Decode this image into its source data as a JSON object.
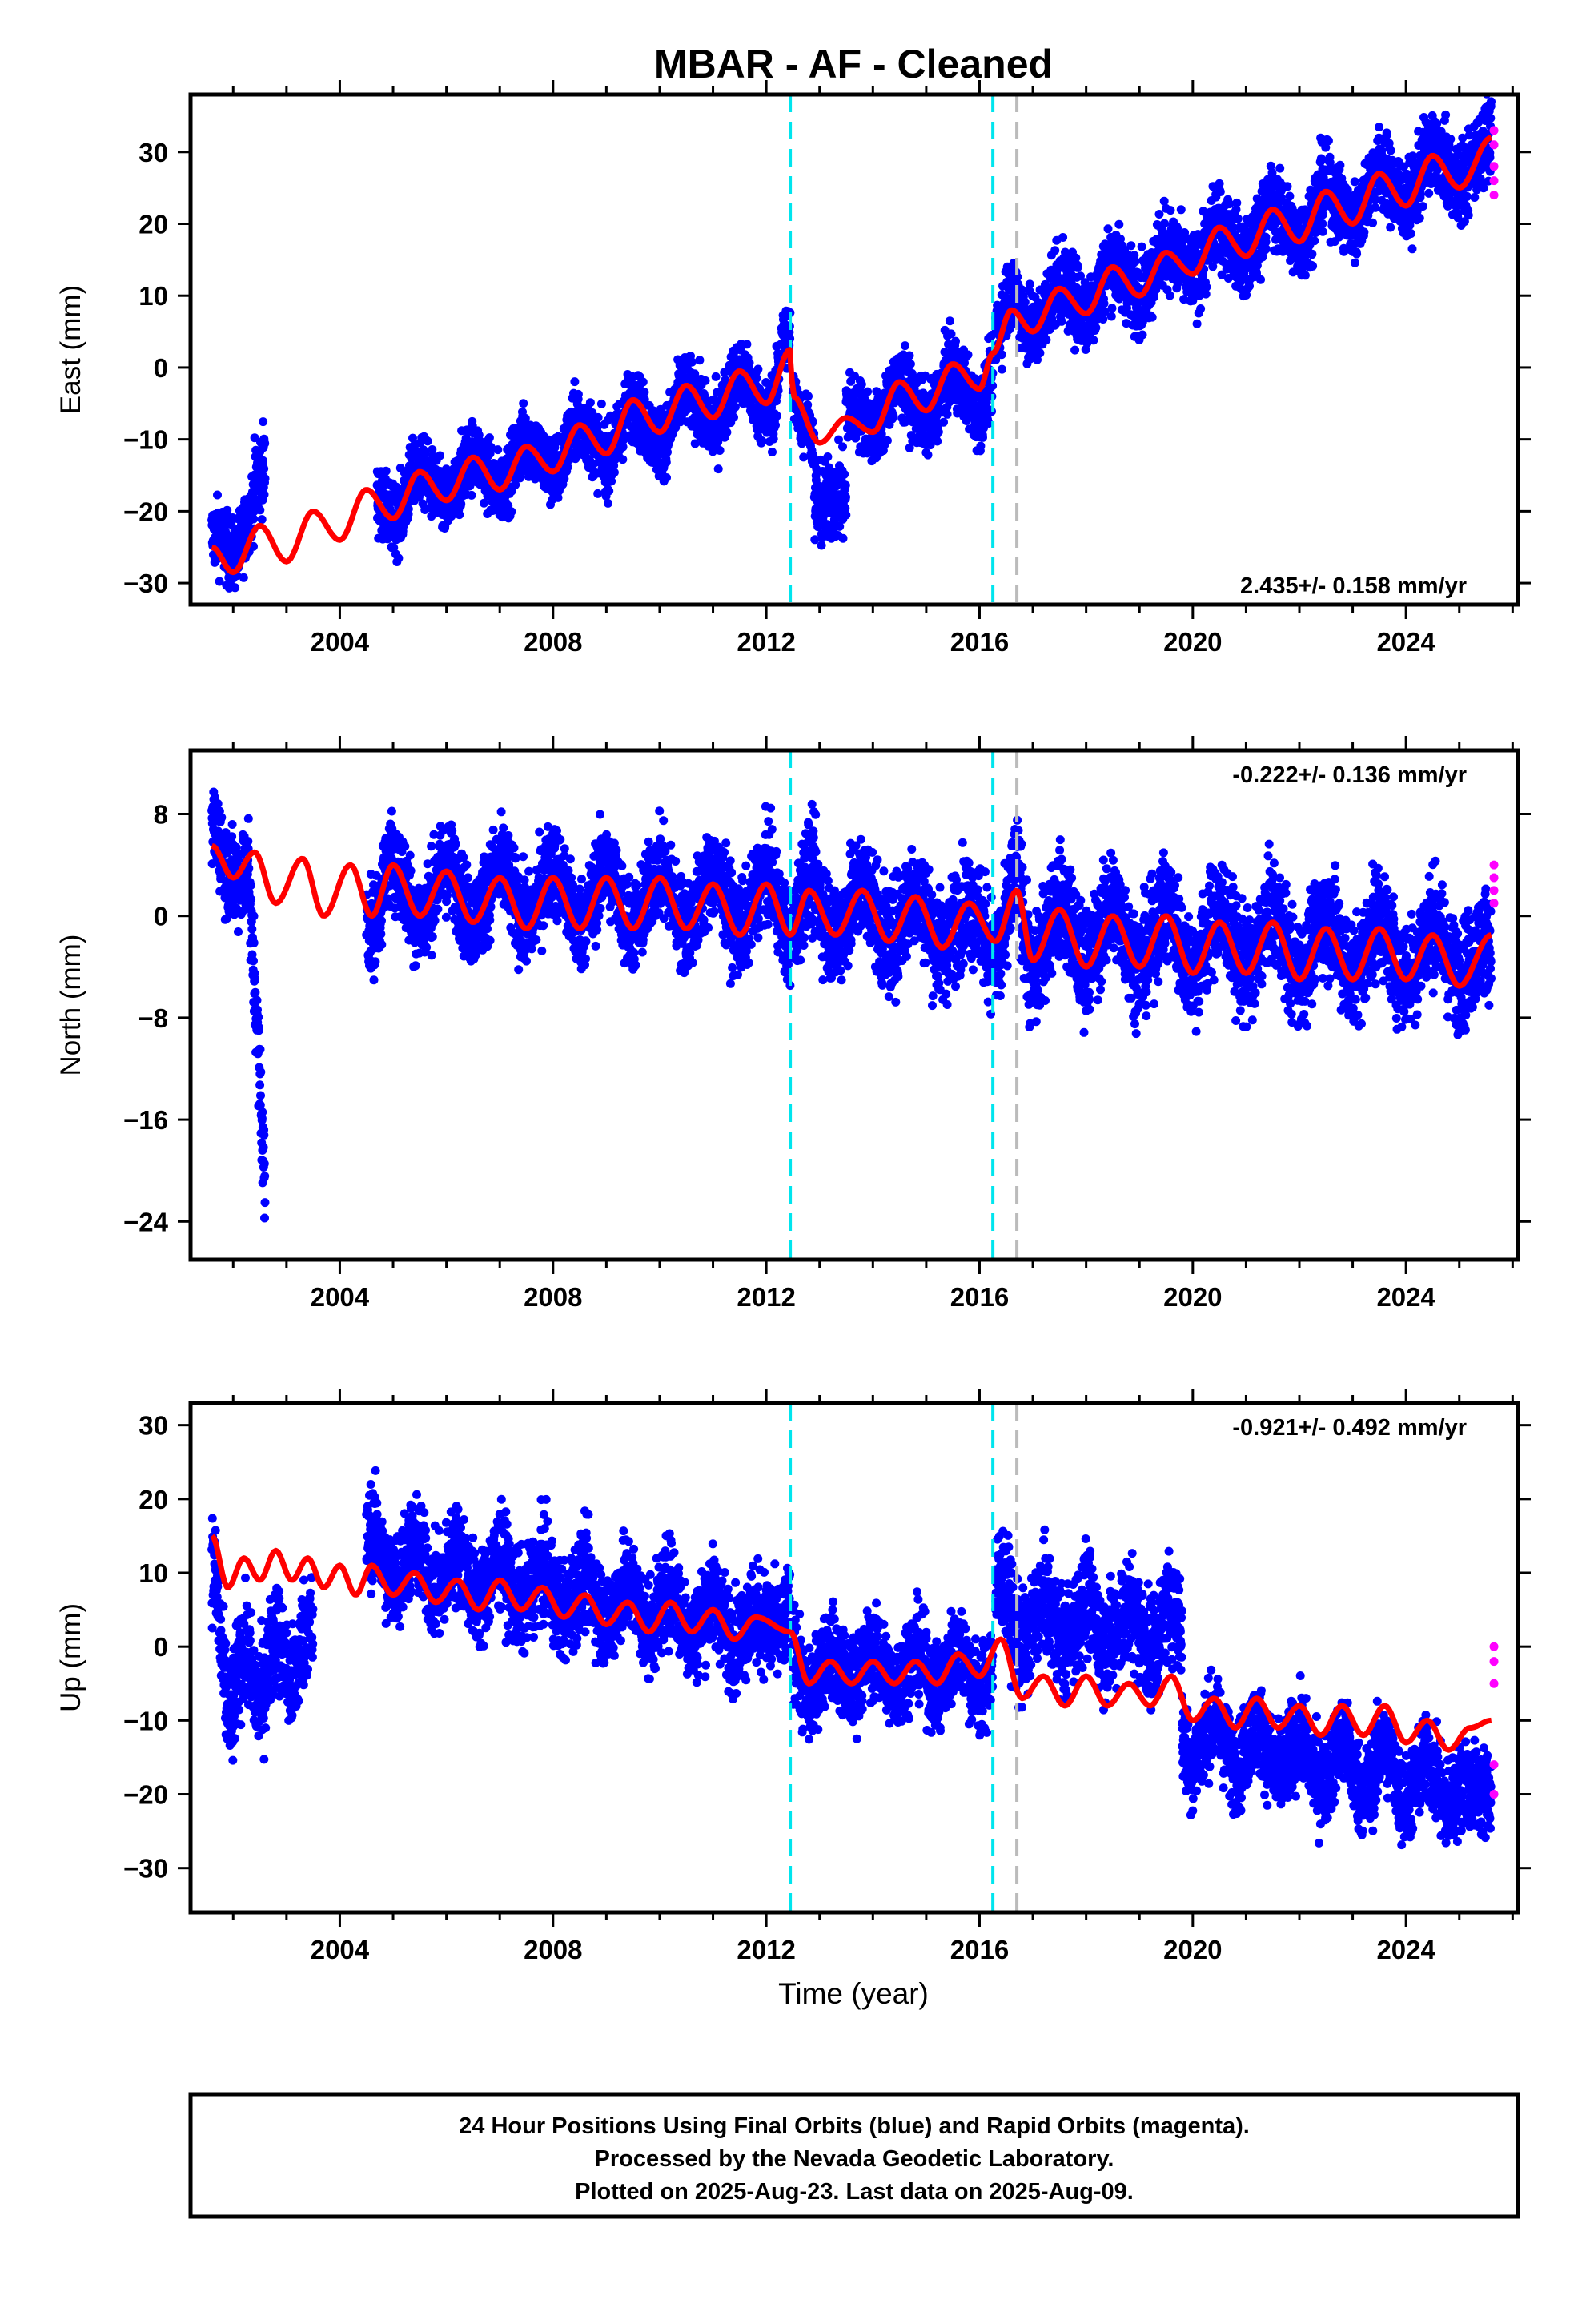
{
  "chart_data": {
    "type": "scatter",
    "title": "MBAR  - AF - Cleaned",
    "xlabel": "Time (year)",
    "xlim": [
      2001.2,
      2026.1
    ],
    "xticks": [
      2004,
      2008,
      2012,
      2016,
      2020,
      2024
    ],
    "vlines": [
      {
        "x": 2012.45,
        "color": "#00e5ee",
        "style": "dashed"
      },
      {
        "x": 2016.25,
        "color": "#00e5ee",
        "style": "dashed"
      },
      {
        "x": 2016.7,
        "color": "#bbbbbb",
        "style": "dashed"
      }
    ],
    "colors": {
      "final": "#0000ff",
      "rapid": "#ff00ff",
      "model": "#ff0000"
    },
    "panels": [
      {
        "ylabel": "East (mm)",
        "ylim": [
          -33,
          38
        ],
        "yticks": [
          -30,
          -20,
          -10,
          0,
          10,
          20,
          30
        ],
        "rate": "2.435+/- 0.158 mm/yr",
        "rate_position": "bottom-right",
        "model": [
          [
            2001.6,
            -25
          ],
          [
            2002.0,
            -28.5
          ],
          [
            2002.5,
            -22
          ],
          [
            2003.0,
            -27
          ],
          [
            2003.5,
            -20
          ],
          [
            2004.0,
            -24
          ],
          [
            2004.5,
            -17
          ],
          [
            2005.0,
            -21
          ],
          [
            2005.5,
            -14.5
          ],
          [
            2006.0,
            -18.5
          ],
          [
            2006.5,
            -12.5
          ],
          [
            2007.0,
            -17
          ],
          [
            2007.5,
            -11
          ],
          [
            2008.0,
            -14.5
          ],
          [
            2008.5,
            -8
          ],
          [
            2009.0,
            -12
          ],
          [
            2009.5,
            -4.5
          ],
          [
            2010.0,
            -9
          ],
          [
            2010.5,
            -2.5
          ],
          [
            2011.0,
            -7
          ],
          [
            2011.5,
            -0.5
          ],
          [
            2012.0,
            -5
          ],
          [
            2012.45,
            2.5
          ],
          [
            2012.5,
            -4
          ],
          [
            2013.0,
            -10.5
          ],
          [
            2013.5,
            -7
          ],
          [
            2014.0,
            -9
          ],
          [
            2014.5,
            -2
          ],
          [
            2015.0,
            -6
          ],
          [
            2015.5,
            0.5
          ],
          [
            2016.0,
            -3
          ],
          [
            2016.25,
            2
          ],
          [
            2016.6,
            8
          ],
          [
            2017.0,
            5
          ],
          [
            2017.5,
            11
          ],
          [
            2018.0,
            7.5
          ],
          [
            2018.5,
            14
          ],
          [
            2019.0,
            10
          ],
          [
            2019.5,
            16
          ],
          [
            2020.0,
            13
          ],
          [
            2020.5,
            19.5
          ],
          [
            2021.0,
            15.5
          ],
          [
            2021.5,
            22
          ],
          [
            2022.0,
            17.5
          ],
          [
            2022.5,
            24.5
          ],
          [
            2023.0,
            20
          ],
          [
            2023.5,
            27
          ],
          [
            2024.0,
            22.5
          ],
          [
            2024.5,
            29.5
          ],
          [
            2025.0,
            25
          ],
          [
            2025.6,
            32
          ]
        ],
        "final_segments": [
          {
            "x0": 2001.6,
            "x1": 2002.4,
            "y0": -25,
            "y1": -21,
            "noise": 4
          },
          {
            "x0": 2002.4,
            "x1": 2002.6,
            "y0": -20,
            "y1": -16,
            "noise": 5
          },
          {
            "x0": 2004.7,
            "x1": 2012.45,
            "y0": -19,
            "y1": -2,
            "noise": 4
          },
          {
            "x0": 2012.5,
            "x1": 2012.9,
            "y0": -4,
            "y1": -8,
            "noise": 3
          },
          {
            "x0": 2012.9,
            "x1": 2013.5,
            "y0": -16,
            "y1": -20,
            "noise": 5
          },
          {
            "x0": 2013.5,
            "x1": 2016.25,
            "y0": -7,
            "y1": -2,
            "noise": 4
          },
          {
            "x0": 2016.3,
            "x1": 2025.6,
            "y0": 6,
            "y1": 30,
            "noise": 4.5
          }
        ],
        "rapid": [
          [
            2025.65,
            33
          ],
          [
            2025.65,
            31
          ],
          [
            2025.65,
            28
          ],
          [
            2025.65,
            26
          ],
          [
            2025.65,
            24
          ]
        ]
      },
      {
        "ylabel": "North (mm)",
        "ylim": [
          -27,
          13
        ],
        "yticks": [
          -24,
          -16,
          -8,
          0,
          8
        ],
        "rate": "-0.222+/- 0.136 mm/yr",
        "rate_position": "top-right",
        "model": [
          [
            2001.6,
            5.5
          ],
          [
            2002.0,
            3
          ],
          [
            2002.4,
            5
          ],
          [
            2002.8,
            1
          ],
          [
            2003.3,
            4.5
          ],
          [
            2003.7,
            0
          ],
          [
            2004.2,
            4
          ],
          [
            2004.6,
            0
          ],
          [
            2005.0,
            4
          ],
          [
            2005.5,
            0
          ],
          [
            2006.0,
            3.5
          ],
          [
            2006.5,
            -0.5
          ],
          [
            2007.0,
            3
          ],
          [
            2007.5,
            -1
          ],
          [
            2008.0,
            3
          ],
          [
            2008.5,
            -1
          ],
          [
            2009.0,
            3
          ],
          [
            2009.5,
            -1
          ],
          [
            2010.0,
            3
          ],
          [
            2010.5,
            -1
          ],
          [
            2011.0,
            2.5
          ],
          [
            2011.5,
            -1.5
          ],
          [
            2012.0,
            2.5
          ],
          [
            2012.45,
            -1.5
          ],
          [
            2012.8,
            2
          ],
          [
            2013.3,
            -1.5
          ],
          [
            2013.8,
            2
          ],
          [
            2014.3,
            -2
          ],
          [
            2014.8,
            1.5
          ],
          [
            2015.3,
            -2.5
          ],
          [
            2015.8,
            1
          ],
          [
            2016.3,
            -2
          ],
          [
            2016.7,
            2
          ],
          [
            2017.0,
            -3.5
          ],
          [
            2017.5,
            0.5
          ],
          [
            2018.0,
            -4
          ],
          [
            2018.5,
            0
          ],
          [
            2019.0,
            -4
          ],
          [
            2019.5,
            0
          ],
          [
            2020.0,
            -4.5
          ],
          [
            2020.5,
            -0.5
          ],
          [
            2021.0,
            -4.5
          ],
          [
            2021.5,
            -0.5
          ],
          [
            2022.0,
            -5
          ],
          [
            2022.5,
            -1
          ],
          [
            2023.0,
            -5
          ],
          [
            2023.5,
            -1
          ],
          [
            2024.0,
            -5
          ],
          [
            2024.5,
            -1.5
          ],
          [
            2025.0,
            -5.5
          ],
          [
            2025.6,
            -1.5
          ]
        ],
        "final_segments": [
          {
            "x0": 2001.6,
            "x1": 2002.3,
            "y0": 6,
            "y1": 3,
            "noise": 3
          },
          {
            "x0": 2002.3,
            "x1": 2002.6,
            "y0": 0,
            "y1": -22,
            "noise": 3
          },
          {
            "x0": 2004.5,
            "x1": 2012.45,
            "y0": 2,
            "y1": 1,
            "noise": 3
          },
          {
            "x0": 2012.5,
            "x1": 2016.25,
            "y0": 1,
            "y1": -1,
            "noise": 3.5
          },
          {
            "x0": 2016.3,
            "x1": 2025.6,
            "y0": -1,
            "y1": -3,
            "noise": 3.5
          }
        ],
        "rapid": [
          [
            2025.65,
            4
          ],
          [
            2025.65,
            3
          ],
          [
            2025.65,
            2
          ],
          [
            2025.65,
            1
          ]
        ]
      },
      {
        "ylabel": "Up (mm)",
        "ylim": [
          -36,
          33
        ],
        "yticks": [
          -30,
          -20,
          -10,
          0,
          10,
          20,
          30
        ],
        "rate": "-0.921+/- 0.492 mm/yr",
        "rate_position": "top-right",
        "model": [
          [
            2001.6,
            15
          ],
          [
            2001.9,
            8
          ],
          [
            2002.2,
            12
          ],
          [
            2002.5,
            9
          ],
          [
            2002.8,
            13
          ],
          [
            2003.1,
            9
          ],
          [
            2003.4,
            12
          ],
          [
            2003.7,
            8
          ],
          [
            2004.0,
            11
          ],
          [
            2004.3,
            7
          ],
          [
            2004.6,
            11
          ],
          [
            2005.0,
            7
          ],
          [
            2005.4,
            10
          ],
          [
            2005.8,
            6
          ],
          [
            2006.2,
            9
          ],
          [
            2006.6,
            5
          ],
          [
            2007.0,
            9
          ],
          [
            2007.4,
            5
          ],
          [
            2007.8,
            8
          ],
          [
            2008.2,
            4
          ],
          [
            2008.6,
            7
          ],
          [
            2009.0,
            3
          ],
          [
            2009.4,
            6
          ],
          [
            2009.8,
            2
          ],
          [
            2010.2,
            6
          ],
          [
            2010.6,
            2
          ],
          [
            2011.0,
            5
          ],
          [
            2011.4,
            1
          ],
          [
            2011.8,
            4
          ],
          [
            2012.45,
            2
          ],
          [
            2012.8,
            -5
          ],
          [
            2013.2,
            -2
          ],
          [
            2013.6,
            -5
          ],
          [
            2014.0,
            -2
          ],
          [
            2014.4,
            -5
          ],
          [
            2014.8,
            -2
          ],
          [
            2015.2,
            -5
          ],
          [
            2015.6,
            -1
          ],
          [
            2016.0,
            -4
          ],
          [
            2016.4,
            1
          ],
          [
            2016.8,
            -7
          ],
          [
            2017.2,
            -4
          ],
          [
            2017.6,
            -8
          ],
          [
            2018.0,
            -4
          ],
          [
            2018.4,
            -8
          ],
          [
            2018.8,
            -5
          ],
          [
            2019.2,
            -8
          ],
          [
            2019.6,
            -4
          ],
          [
            2020.0,
            -10
          ],
          [
            2020.4,
            -7
          ],
          [
            2020.8,
            -11
          ],
          [
            2021.2,
            -7
          ],
          [
            2021.6,
            -11
          ],
          [
            2022.0,
            -8
          ],
          [
            2022.4,
            -12
          ],
          [
            2022.8,
            -8
          ],
          [
            2023.2,
            -12
          ],
          [
            2023.6,
            -8
          ],
          [
            2024.0,
            -13
          ],
          [
            2024.4,
            -10
          ],
          [
            2024.8,
            -14
          ],
          [
            2025.2,
            -11
          ],
          [
            2025.6,
            -10
          ]
        ],
        "final_segments": [
          {
            "x0": 2001.6,
            "x1": 2002.0,
            "y0": 8,
            "y1": -6,
            "noise": 6
          },
          {
            "x0": 2002.0,
            "x1": 2003.5,
            "y0": -5,
            "y1": 0,
            "noise": 6
          },
          {
            "x0": 2004.5,
            "x1": 2012.45,
            "y0": 12,
            "y1": 2,
            "noise": 5.5
          },
          {
            "x0": 2012.5,
            "x1": 2016.25,
            "y0": -3,
            "y1": -3,
            "noise": 5
          },
          {
            "x0": 2016.3,
            "x1": 2019.8,
            "y0": 4,
            "y1": 2,
            "noise": 6
          },
          {
            "x0": 2019.8,
            "x1": 2025.6,
            "y0": -12,
            "y1": -20,
            "noise": 5
          }
        ],
        "rapid": [
          [
            2025.65,
            0
          ],
          [
            2025.65,
            -2
          ],
          [
            2025.65,
            -5
          ],
          [
            2025.65,
            -16
          ],
          [
            2025.65,
            -20
          ]
        ]
      }
    ]
  },
  "footer": {
    "line1": "24 Hour Positions Using Final Orbits (blue) and Rapid Orbits (magenta).",
    "line2": "Processed by the Nevada Geodetic Laboratory.",
    "line3": "Plotted on 2025-Aug-23. Last data on 2025-Aug-09."
  }
}
